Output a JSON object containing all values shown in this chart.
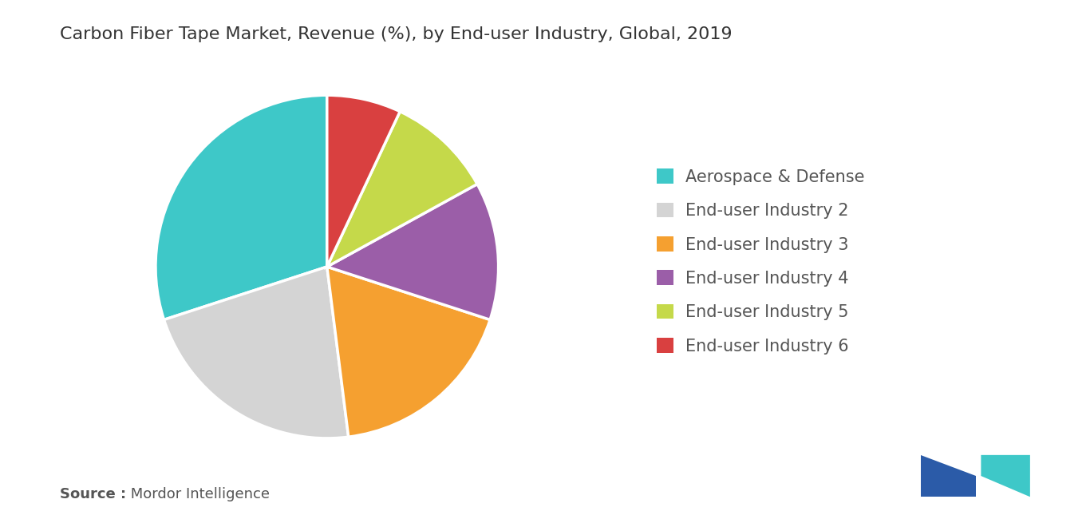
{
  "title": "Carbon Fiber Tape Market, Revenue (%), by End-user Industry, Global, 2019",
  "slices": [
    {
      "label": "Aerospace & Defense",
      "value": 30,
      "color": "#3ec8c8"
    },
    {
      "label": "End-user Industry 2",
      "value": 22,
      "color": "#d4d4d4"
    },
    {
      "label": "End-user Industry 3",
      "value": 18,
      "color": "#f5a030"
    },
    {
      "label": "End-user Industry 4",
      "value": 13,
      "color": "#9b5ea8"
    },
    {
      "label": "End-user Industry 5",
      "value": 10,
      "color": "#c5d94a"
    },
    {
      "label": "End-user Industry 6",
      "value": 7,
      "color": "#d94040"
    }
  ],
  "background_color": "#ffffff",
  "title_fontsize": 16,
  "legend_fontsize": 15,
  "source_bold": "Source :",
  "source_normal": " Mordor Intelligence",
  "source_fontsize": 13,
  "source_color": "#555555",
  "title_color": "#333333",
  "startangle": 90
}
